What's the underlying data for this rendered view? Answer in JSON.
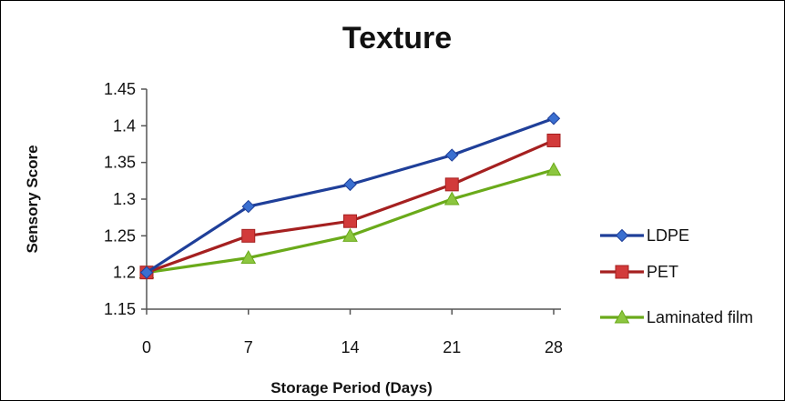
{
  "chart_data": {
    "type": "line",
    "title": "Texture",
    "xlabel": "Storage Period (Days)",
    "ylabel": "Sensory Score",
    "categories": [
      "0",
      "7",
      "14",
      "21",
      "28"
    ],
    "ylim": [
      1.15,
      1.45
    ],
    "yticks": [
      "1.15",
      "1.2",
      "1.25",
      "1.3",
      "1.35",
      "1.4",
      "1.45"
    ],
    "grid": false,
    "legend_position": "right",
    "series": [
      {
        "name": "LDPE",
        "values": [
          1.2,
          1.29,
          1.32,
          1.36,
          1.41
        ],
        "color": "#1f3f99",
        "marker": "diamond",
        "marker_color": "#3a6fd0"
      },
      {
        "name": "PET",
        "values": [
          1.2,
          1.25,
          1.27,
          1.32,
          1.38
        ],
        "color": "#a52020",
        "marker": "square",
        "marker_color": "#d23a3a"
      },
      {
        "name": "Laminated film",
        "values": [
          1.2,
          1.22,
          1.25,
          1.3,
          1.34
        ],
        "color": "#6aaa1a",
        "marker": "triangle",
        "marker_color": "#8cc63f"
      }
    ]
  }
}
